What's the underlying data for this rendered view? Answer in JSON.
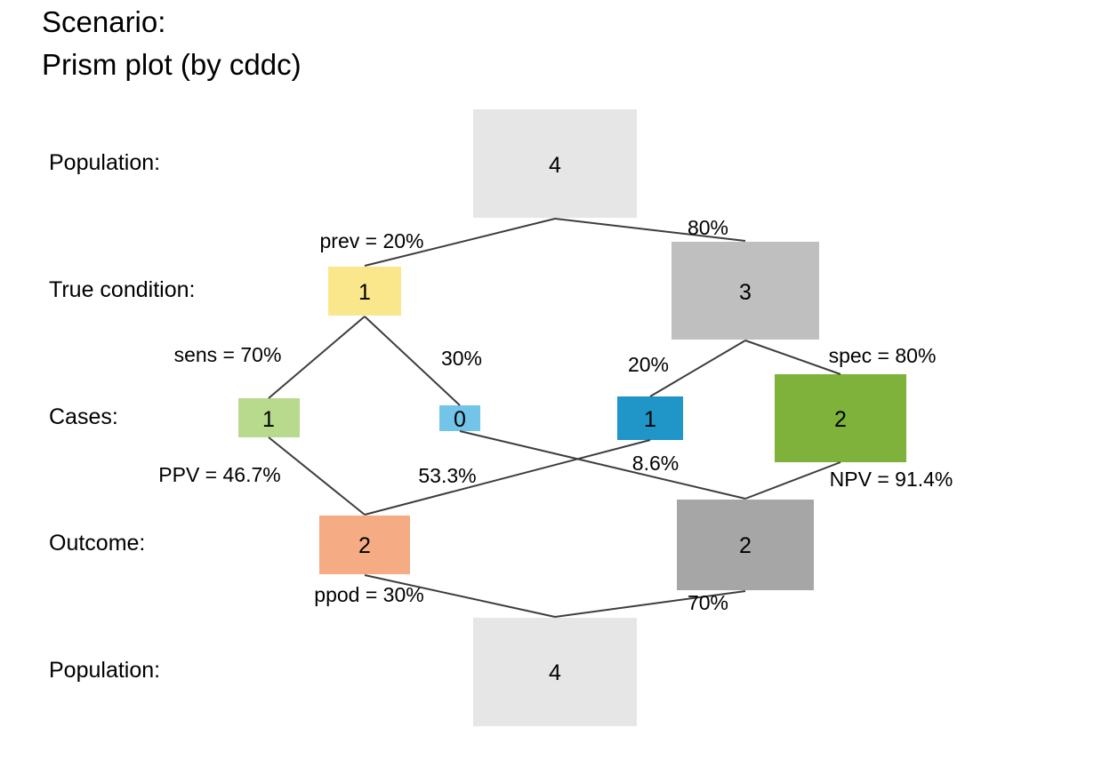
{
  "title": {
    "line1": "Scenario:",
    "line2": "Prism plot (by cddc)"
  },
  "row_labels": {
    "population_top": "Population:",
    "true_condition": "True condition:",
    "cases": "Cases:",
    "outcome": "Outcome:",
    "population_bottom": "Population:"
  },
  "boxes": {
    "pop_top": {
      "value": "4",
      "color": "#e6e6e6"
    },
    "cond_true": {
      "value": "1",
      "color": "#fbe78b"
    },
    "cond_false": {
      "value": "3",
      "color": "#bfbfbf"
    },
    "hit": {
      "value": "1",
      "color": "#b8da8c"
    },
    "miss": {
      "value": "0",
      "color": "#73c4e9"
    },
    "false_alarm": {
      "value": "1",
      "color": "#1f95c8"
    },
    "correct_rejection": {
      "value": "2",
      "color": "#7fb23a"
    },
    "dec_pos": {
      "value": "2",
      "color": "#f5ab84"
    },
    "dec_neg": {
      "value": "2",
      "color": "#a6a6a6"
    },
    "pop_bottom": {
      "value": "4",
      "color": "#e6e6e6"
    }
  },
  "edge_labels": {
    "prev": "prev = 20%",
    "not_prev": "80%",
    "sens": "sens = 70%",
    "miss_rate": "30%",
    "false_alarm_rate": "20%",
    "spec": "spec = 80%",
    "ppv": "PPV = 46.7%",
    "fdr": "53.3%",
    "for": "8.6%",
    "npv": "NPV = 91.4%",
    "ppod": "ppod = 30%",
    "not_ppod": "70%"
  }
}
